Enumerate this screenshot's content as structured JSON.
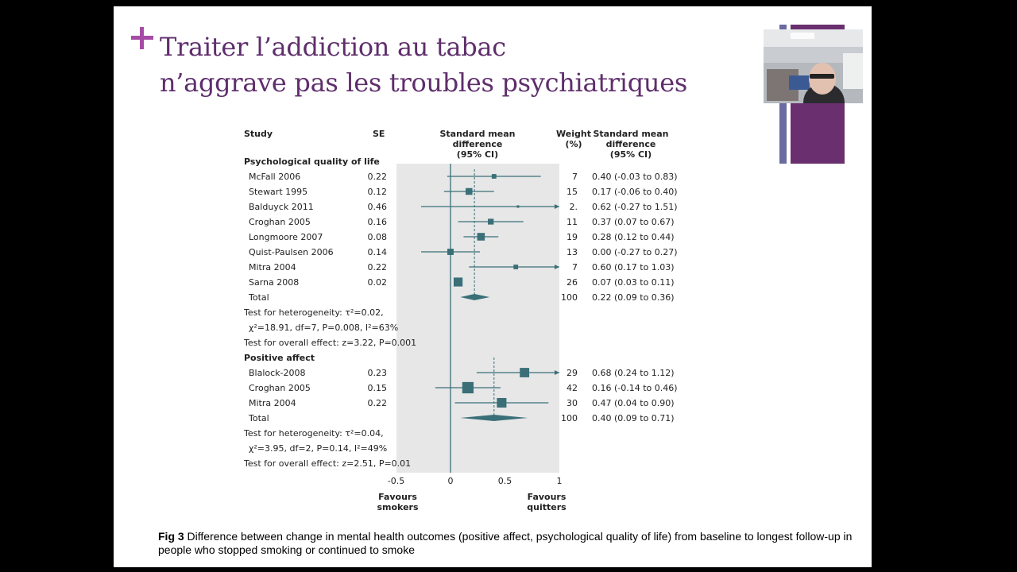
{
  "slide": {
    "title_line1": "Traiter l’addiction au tabac",
    "title_line2": "n’aggrave pas les troubles psychiatriques",
    "accent_color": "#a64ca6",
    "title_color": "#5f2e6c"
  },
  "caption": {
    "label": "Fig 3",
    "text": " Difference between change in mental health outcomes (positive affect, psychological quality of life) from baseline to longest follow-up in people who stopped smoking or continued to smoke"
  },
  "chart_data": {
    "type": "forest",
    "headers": {
      "study": "Study",
      "se": "SE",
      "smd_plot_lines": [
        "Standard mean",
        "difference",
        "(95% CI)"
      ],
      "weight_lines": [
        "Weight",
        "(%)"
      ],
      "smd_value_lines": [
        "Standard mean",
        "difference",
        "(95% CI)"
      ]
    },
    "xlim": [
      -0.5,
      1
    ],
    "x_ticks": [
      "-0.5",
      "0",
      "0.5",
      "1"
    ],
    "x_tick_values": [
      -0.5,
      0,
      0.5,
      1
    ],
    "favours_left": [
      "Favours",
      "smokers"
    ],
    "favours_right": [
      "Favours",
      "quitters"
    ],
    "groups": [
      {
        "name": "Psychological quality of life",
        "studies": [
          {
            "study": "McFall 2006",
            "se": "0.22",
            "est": 0.4,
            "lo": -0.03,
            "hi": 0.83,
            "weight": "7",
            "ci_text": "0.40 (-0.03 to 0.83)"
          },
          {
            "study": "Stewart 1995",
            "se": "0.12",
            "est": 0.17,
            "lo": -0.06,
            "hi": 0.4,
            "weight": "15",
            "ci_text": "0.17 (-0.06 to 0.40)"
          },
          {
            "study": "Balduyck 2011",
            "se": "0.46",
            "est": 0.62,
            "lo": -0.27,
            "hi": 1.51,
            "weight": "2.",
            "ci_text": "0.62 (-0.27 to 1.51)"
          },
          {
            "study": "Croghan 2005",
            "se": "0.16",
            "est": 0.37,
            "lo": 0.07,
            "hi": 0.67,
            "weight": "11",
            "ci_text": "0.37 (0.07 to 0.67)"
          },
          {
            "study": "Longmoore 2007",
            "se": "0.08",
            "est": 0.28,
            "lo": 0.12,
            "hi": 0.44,
            "weight": "19",
            "ci_text": "0.28 (0.12 to 0.44)"
          },
          {
            "study": "Quist-Paulsen 2006",
            "se": "0.14",
            "est": 0.0,
            "lo": -0.27,
            "hi": 0.27,
            "weight": "13",
            "ci_text": "0.00 (-0.27 to 0.27)"
          },
          {
            "study": "Mitra 2004",
            "se": "0.22",
            "est": 0.6,
            "lo": 0.17,
            "hi": 1.03,
            "weight": "7",
            "ci_text": "0.60 (0.17 to 1.03)"
          },
          {
            "study": "Sarna 2008",
            "se": "0.02",
            "est": 0.07,
            "lo": 0.03,
            "hi": 0.11,
            "weight": "26",
            "ci_text": "0.07 (0.03 to 0.11)"
          }
        ],
        "total": {
          "label": "Total",
          "est": 0.22,
          "lo": 0.09,
          "hi": 0.36,
          "weight": "100",
          "ci_text": "0.22 (0.09 to 0.36)"
        },
        "heterogeneity": {
          "line1": "Test for heterogeneity: τ²=0.02,",
          "line2": "χ²=18.91, df=7, P=0.008, I²=63%"
        },
        "overall_effect": "Test for overall effect: z=3.22, P=0.001"
      },
      {
        "name": "Positive affect",
        "studies": [
          {
            "study": "Blalock-2008",
            "se": "0.23",
            "est": 0.68,
            "lo": 0.24,
            "hi": 1.12,
            "weight": "29",
            "ci_text": "0.68 (0.24 to 1.12)"
          },
          {
            "study": "Croghan 2005",
            "se": "0.15",
            "est": 0.16,
            "lo": -0.14,
            "hi": 0.46,
            "weight": "42",
            "ci_text": "0.16 (-0.14 to 0.46)"
          },
          {
            "study": "Mitra 2004",
            "se": "0.22",
            "est": 0.47,
            "lo": 0.04,
            "hi": 0.9,
            "weight": "30",
            "ci_text": "0.47 (0.04 to 0.90)"
          }
        ],
        "total": {
          "label": "Total",
          "est": 0.4,
          "lo": 0.09,
          "hi": 0.71,
          "weight": "100",
          "ci_text": "0.40 (0.09 to 0.71)"
        },
        "heterogeneity": {
          "line1": "Test for heterogeneity: τ²=0.04,",
          "line2": "χ²=3.95, df=2, P=0.14, I²=49%"
        },
        "overall_effect": "Test for overall effect: z=2.51, P=0.01"
      }
    ],
    "colors": {
      "marker": "#3a6f78",
      "panel": "#e7e7e7",
      "text": "#222222"
    }
  }
}
